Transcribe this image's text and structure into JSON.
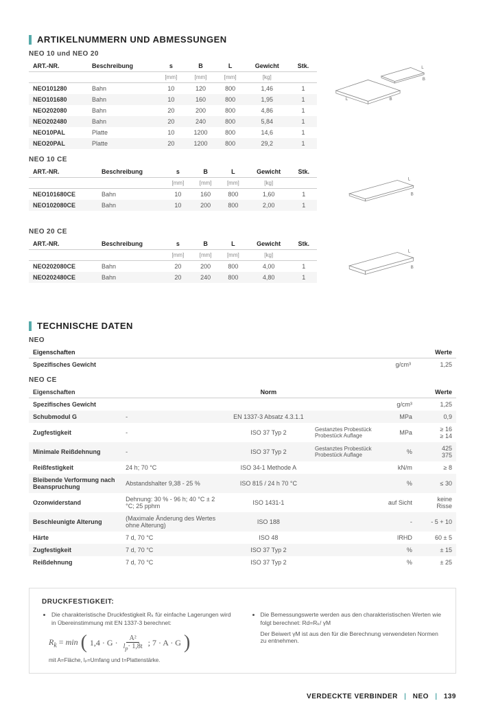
{
  "section1": {
    "title": "ARTIKELNUMMERN UND ABMESSUNGEN",
    "sub1": "NEO 10 und NEO 20",
    "sub2": "NEO 10 CE",
    "sub3": "NEO 20 CE",
    "columns": [
      "ART.-NR.",
      "Beschreibung",
      "s",
      "B",
      "L",
      "Gewicht",
      "Stk."
    ],
    "units": [
      "",
      "",
      "[mm]",
      "[mm]",
      "[mm]",
      "[kg]",
      ""
    ],
    "table1": [
      [
        "NEO101280",
        "Bahn",
        "10",
        "120",
        "800",
        "1,46",
        "1"
      ],
      [
        "NEO101680",
        "Bahn",
        "10",
        "160",
        "800",
        "1,95",
        "1"
      ],
      [
        "NEO202080",
        "Bahn",
        "20",
        "200",
        "800",
        "4,86",
        "1"
      ],
      [
        "NEO202480",
        "Bahn",
        "20",
        "240",
        "800",
        "5,84",
        "1"
      ],
      [
        "NEO10PAL",
        "Platte",
        "10",
        "1200",
        "800",
        "14,6",
        "1"
      ],
      [
        "NEO20PAL",
        "Platte",
        "20",
        "1200",
        "800",
        "29,2",
        "1"
      ]
    ],
    "table2": [
      [
        "NEO101680CE",
        "Bahn",
        "10",
        "160",
        "800",
        "1,60",
        "1"
      ],
      [
        "NEO102080CE",
        "Bahn",
        "10",
        "200",
        "800",
        "2,00",
        "1"
      ]
    ],
    "table3": [
      [
        "NEO202080CE",
        "Bahn",
        "20",
        "200",
        "800",
        "4,00",
        "1"
      ],
      [
        "NEO202480CE",
        "Bahn",
        "20",
        "240",
        "800",
        "4,80",
        "1"
      ]
    ]
  },
  "section2": {
    "title": "TECHNISCHE DATEN",
    "sub1": "NEO",
    "sub2": "NEO CE",
    "cols1": [
      "Eigenschaften",
      "Werte"
    ],
    "rows1": [
      [
        "Spezifisches Gewicht",
        "g/cm³",
        "1,25"
      ]
    ],
    "cols2": {
      "prop": "Eigenschaften",
      "norm": "Norm",
      "werte": "Werte"
    },
    "rows2": [
      {
        "prop": "Spezifisches Gewicht",
        "note": "",
        "norm": "",
        "cond": "",
        "unit": "g/cm³",
        "val": "1,25"
      },
      {
        "prop": "Schubmodul G",
        "note": "-",
        "norm": "EN 1337-3 Absatz 4.3.1.1",
        "cond": "",
        "unit": "MPa",
        "val": "0,9"
      },
      {
        "prop": "Zugfestigkeit",
        "note": "-",
        "norm": "ISO 37 Typ 2",
        "cond": "Gestanztes Probestück\nProbestück Auflage",
        "unit": "MPa",
        "val": "≥ 16\n≥ 14"
      },
      {
        "prop": "Minimale Reißdehnung",
        "note": "-",
        "norm": "ISO 37 Typ 2",
        "cond": "Gestanztes Probestück\nProbestück Auflage",
        "unit": "%",
        "val": "425\n375"
      },
      {
        "prop": "Reißfestigkeit",
        "note": "24 h; 70 °C",
        "norm": "ISO 34-1 Methode A",
        "cond": "",
        "unit": "kN/m",
        "val": "≥ 8"
      },
      {
        "prop": "Bleibende Verformung nach Beanspruchung",
        "note": "Abstandshalter 9,38 - 25 %",
        "norm": "ISO 815 / 24 h 70 °C",
        "cond": "",
        "unit": "%",
        "val": "≤ 30"
      },
      {
        "prop": "Ozonwiderstand",
        "note": "Dehnung: 30 % - 96 h; 40 °C ± 2 °C; 25 pphm",
        "norm": "ISO 1431-1",
        "cond": "",
        "unit": "auf Sicht",
        "val": "keine Risse"
      },
      {
        "prop": "Beschleunigte Alterung",
        "note": "(Maximale Änderung des Wertes ohne Alterung)",
        "norm": "ISO 188",
        "cond": "",
        "unit": "-",
        "val": "- 5 + 10"
      },
      {
        "prop": "Härte",
        "note": "7 d, 70 °C",
        "norm": "ISO 48",
        "cond": "",
        "unit": "IRHD",
        "val": "60 ± 5"
      },
      {
        "prop": "Zugfestigkeit",
        "note": "7 d, 70 °C",
        "norm": "ISO 37 Typ 2",
        "cond": "",
        "unit": "%",
        "val": "± 15"
      },
      {
        "prop": "Reißdehnung",
        "note": "7 d, 70 °C",
        "norm": "ISO 37 Typ 2",
        "cond": "",
        "unit": "%",
        "val": "± 25"
      }
    ]
  },
  "druck": {
    "title": "DRUCKFESTIGKEIT:",
    "left_bullet": "Die charakteristische Druckfestigkeit Rₖ für einfache Lagerungen wird in Übereinstimmung mit EN 1337-3 berechnet:",
    "formula_note": "mit A=Fläche, lₚ=Umfang und t=Plattenstärke.",
    "right_bullet1": "Die Bemessungswerte werden aus den charakteristischen Werten wie folgt berechnet: Rd=Rₖ/ γM",
    "right_bullet2": "Der Beiwert γM ist aus den für die Berechnung verwendeten Normen zu entnehmen."
  },
  "footer": {
    "a": "VERDECKTE VERBINDER",
    "b": "NEO",
    "c": "139"
  },
  "diagram": {
    "L": "L",
    "B": "B"
  }
}
